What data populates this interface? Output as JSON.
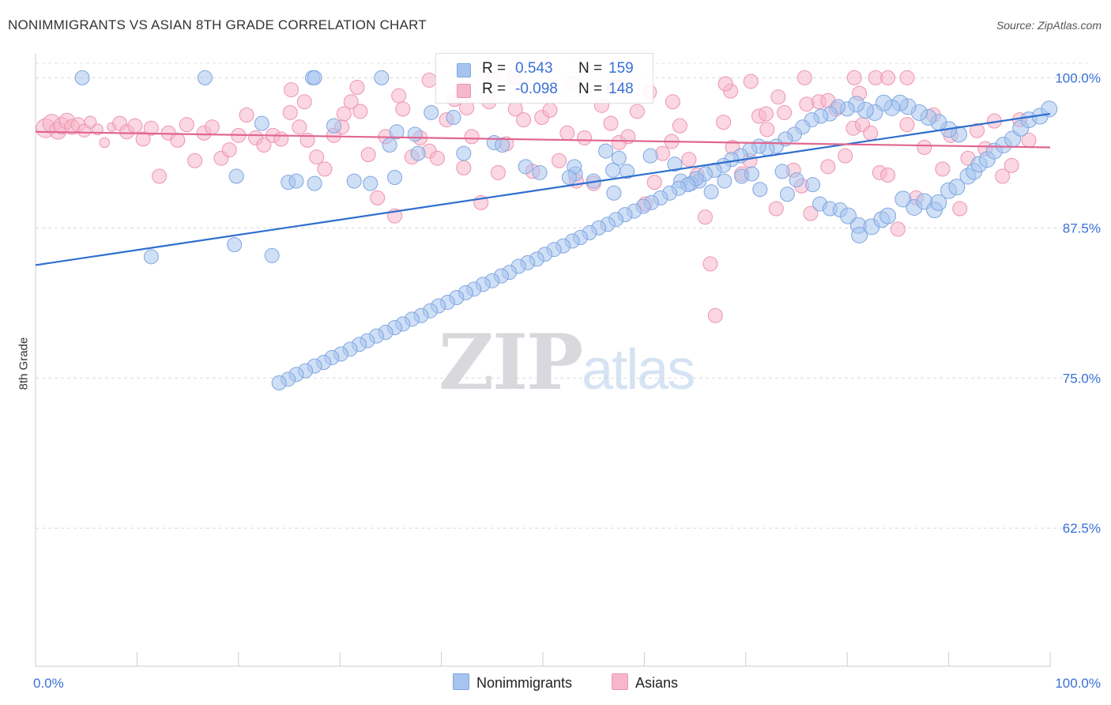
{
  "title": "NONIMMIGRANTS VS ASIAN 8TH GRADE CORRELATION CHART",
  "source": "Source: ZipAtlas.com",
  "watermark": {
    "zip": "ZIP",
    "atlas": "atlas"
  },
  "stats": [
    {
      "r_label": "R =",
      "r_value": "0.543",
      "n_label": "N =",
      "n_value": "159"
    },
    {
      "r_label": "R =",
      "r_value": "-0.098",
      "n_label": "N =",
      "n_value": "148"
    }
  ],
  "legend": {
    "blue": "Nonimmigrants",
    "pink": "Asians"
  },
  "colors": {
    "blue_fill": "#a7c4ee",
    "blue_line": "#2d6fcf",
    "pink_fill": "#f6b7ca",
    "pink_line": "#e06690",
    "tick_text": "#3a6fd8"
  },
  "chart_data": {
    "type": "scatter",
    "title": "NONIMMIGRANTS VS ASIAN 8TH GRADE CORRELATION CHART",
    "xlabel": "",
    "ylabel": "8th Grade",
    "xlim": [
      0,
      100
    ],
    "ylim": [
      51,
      102
    ],
    "x_tick_labels": [
      "0.0%",
      "100.0%"
    ],
    "y_ticks": [
      62.5,
      75.0,
      87.5,
      100.0
    ],
    "y_tick_labels": [
      "62.5%",
      "75.0%",
      "87.5%",
      "100.0%"
    ],
    "grid": true,
    "legend_position": "bottom-center",
    "series": [
      {
        "name": "Nonimmigrants",
        "r": 0.543,
        "n": 159,
        "trend": {
          "x": [
            0,
            100
          ],
          "y": [
            84.4,
            97.0
          ]
        },
        "points": [
          [
            4.6,
            100
          ],
          [
            16.7,
            100
          ],
          [
            27.3,
            100
          ],
          [
            27.5,
            100
          ],
          [
            34.1,
            100
          ],
          [
            29.4,
            96.0
          ],
          [
            22.3,
            96.2
          ],
          [
            11.4,
            85.1
          ],
          [
            19.6,
            86.1
          ],
          [
            23.3,
            85.2
          ],
          [
            24.9,
            91.3
          ],
          [
            25.7,
            91.4
          ],
          [
            27.5,
            91.2
          ],
          [
            19.8,
            91.8
          ],
          [
            31.4,
            91.4
          ],
          [
            33.0,
            91.2
          ],
          [
            35.4,
            91.7
          ],
          [
            37.7,
            93.7
          ],
          [
            37.4,
            95.3
          ],
          [
            41.2,
            96.7
          ],
          [
            35.6,
            95.5
          ],
          [
            34.9,
            94.4
          ],
          [
            39.0,
            97.1
          ],
          [
            42.2,
            93.7
          ],
          [
            45.2,
            94.6
          ],
          [
            46.0,
            94.4
          ],
          [
            48.3,
            92.6
          ],
          [
            49.7,
            92.1
          ],
          [
            53.2,
            92.0
          ],
          [
            55.0,
            91.4
          ],
          [
            56.2,
            93.9
          ],
          [
            63.6,
            91.4
          ],
          [
            65.4,
            91.4
          ],
          [
            57.5,
            93.3
          ],
          [
            57.0,
            90.4
          ],
          [
            56.9,
            92.3
          ],
          [
            53.1,
            92.6
          ],
          [
            52.6,
            91.7
          ],
          [
            58.3,
            92.2
          ],
          [
            60.6,
            93.5
          ],
          [
            63.0,
            92.8
          ],
          [
            64.6,
            91.2
          ],
          [
            66.6,
            90.5
          ],
          [
            69.6,
            91.8
          ],
          [
            67.9,
            91.4
          ],
          [
            70.6,
            92.0
          ],
          [
            71.4,
            90.7
          ],
          [
            73.6,
            92.2
          ],
          [
            75.0,
            91.5
          ],
          [
            74.1,
            90.3
          ],
          [
            76.6,
            91.1
          ],
          [
            77.3,
            89.5
          ],
          [
            78.3,
            89.1
          ],
          [
            79.3,
            89.0
          ],
          [
            80.1,
            88.5
          ],
          [
            81.1,
            87.7
          ],
          [
            81.2,
            86.9
          ],
          [
            82.4,
            87.6
          ],
          [
            83.4,
            88.2
          ],
          [
            84.0,
            88.5
          ],
          [
            85.5,
            89.9
          ],
          [
            86.6,
            89.2
          ],
          [
            87.6,
            89.7
          ],
          [
            88.6,
            89.0
          ],
          [
            89.0,
            89.6
          ],
          [
            90.0,
            90.6
          ],
          [
            90.8,
            90.9
          ],
          [
            91.9,
            91.8
          ],
          [
            92.5,
            92.2
          ],
          [
            93.0,
            92.8
          ],
          [
            93.8,
            93.2
          ],
          [
            94.5,
            93.9
          ],
          [
            95.4,
            94.4
          ],
          [
            96.3,
            94.9
          ],
          [
            97.1,
            95.8
          ],
          [
            97.9,
            96.5
          ],
          [
            99.0,
            96.8
          ],
          [
            99.9,
            97.4
          ],
          [
            91.0,
            95.3
          ],
          [
            90.0,
            95.7
          ],
          [
            89.0,
            96.3
          ],
          [
            88.0,
            96.7
          ],
          [
            87.1,
            97.1
          ],
          [
            86.0,
            97.6
          ],
          [
            85.2,
            97.9
          ],
          [
            84.4,
            97.5
          ],
          [
            83.6,
            97.9
          ],
          [
            82.7,
            97.1
          ],
          [
            81.8,
            97.3
          ],
          [
            80.9,
            97.8
          ],
          [
            80.0,
            97.4
          ],
          [
            79.1,
            97.6
          ],
          [
            78.3,
            97.0
          ],
          [
            77.4,
            96.8
          ],
          [
            76.5,
            96.5
          ],
          [
            75.6,
            95.9
          ],
          [
            74.8,
            95.3
          ],
          [
            73.9,
            94.9
          ],
          [
            73.0,
            94.3
          ],
          [
            72.1,
            94.1
          ],
          [
            71.3,
            94.3
          ],
          [
            70.4,
            94.0
          ],
          [
            69.5,
            93.5
          ],
          [
            68.6,
            93.2
          ],
          [
            67.8,
            92.7
          ],
          [
            66.9,
            92.3
          ],
          [
            66.0,
            92.0
          ],
          [
            65.1,
            91.6
          ],
          [
            64.3,
            91.1
          ],
          [
            63.4,
            90.8
          ],
          [
            62.5,
            90.4
          ],
          [
            61.6,
            90.0
          ],
          [
            60.7,
            89.6
          ],
          [
            59.9,
            89.3
          ],
          [
            59.0,
            88.9
          ],
          [
            58.1,
            88.6
          ],
          [
            57.2,
            88.2
          ],
          [
            56.4,
            87.8
          ],
          [
            55.5,
            87.5
          ],
          [
            54.6,
            87.1
          ],
          [
            53.7,
            86.7
          ],
          [
            52.9,
            86.4
          ],
          [
            52.0,
            86.0
          ],
          [
            51.1,
            85.7
          ],
          [
            50.2,
            85.3
          ],
          [
            49.4,
            84.9
          ],
          [
            48.5,
            84.6
          ],
          [
            47.6,
            84.3
          ],
          [
            46.7,
            83.8
          ],
          [
            45.9,
            83.5
          ],
          [
            45.0,
            83.1
          ],
          [
            44.1,
            82.8
          ],
          [
            43.2,
            82.4
          ],
          [
            42.4,
            82.1
          ],
          [
            41.5,
            81.7
          ],
          [
            40.6,
            81.3
          ],
          [
            39.7,
            81.0
          ],
          [
            38.9,
            80.6
          ],
          [
            38.0,
            80.2
          ],
          [
            37.1,
            79.9
          ],
          [
            36.2,
            79.5
          ],
          [
            35.4,
            79.2
          ],
          [
            34.5,
            78.8
          ],
          [
            33.6,
            78.5
          ],
          [
            32.7,
            78.1
          ],
          [
            31.9,
            77.8
          ],
          [
            31.0,
            77.4
          ],
          [
            30.1,
            77.0
          ],
          [
            29.2,
            76.7
          ],
          [
            28.4,
            76.3
          ],
          [
            27.5,
            76.0
          ],
          [
            26.6,
            75.6
          ],
          [
            25.7,
            75.3
          ],
          [
            24.9,
            74.9
          ],
          [
            24.0,
            74.6
          ]
        ]
      },
      {
        "name": "Asians",
        "r": -0.098,
        "n": 148,
        "trend": {
          "x": [
            0,
            100
          ],
          "y": [
            95.5,
            94.2
          ]
        },
        "points": [
          [
            1.0,
            95.8
          ],
          [
            1.6,
            96.2
          ],
          [
            2.2,
            95.6
          ],
          [
            2.6,
            96.0
          ],
          [
            3.1,
            96.4
          ],
          [
            3.6,
            95.9
          ],
          [
            4.2,
            96.1
          ],
          [
            4.8,
            95.6
          ],
          [
            5.4,
            96.3
          ],
          [
            6.1,
            95.7
          ],
          [
            6.8,
            94.6
          ],
          [
            7.5,
            95.9
          ],
          [
            8.3,
            96.2
          ],
          [
            9.0,
            95.5
          ],
          [
            9.8,
            96.0
          ],
          [
            10.6,
            94.9
          ],
          [
            11.4,
            95.8
          ],
          [
            12.2,
            91.8
          ],
          [
            13.1,
            95.4
          ],
          [
            14.0,
            94.8
          ],
          [
            14.9,
            96.1
          ],
          [
            15.7,
            93.1
          ],
          [
            16.6,
            95.4
          ],
          [
            17.4,
            95.9
          ],
          [
            18.3,
            93.3
          ],
          [
            19.1,
            94.0
          ],
          [
            20.0,
            95.2
          ],
          [
            20.8,
            96.9
          ],
          [
            21.7,
            95.0
          ],
          [
            22.5,
            94.4
          ],
          [
            23.4,
            95.2
          ],
          [
            24.2,
            94.9
          ],
          [
            25.1,
            97.1
          ],
          [
            26.0,
            95.9
          ],
          [
            26.8,
            94.8
          ],
          [
            27.7,
            93.4
          ],
          [
            28.5,
            92.4
          ],
          [
            29.4,
            95.2
          ],
          [
            30.2,
            95.9
          ],
          [
            31.1,
            98.0
          ],
          [
            32.0,
            97.2
          ],
          [
            32.8,
            93.6
          ],
          [
            33.7,
            90.0
          ],
          [
            34.5,
            95.1
          ],
          [
            35.4,
            88.5
          ],
          [
            36.2,
            97.4
          ],
          [
            37.1,
            93.4
          ],
          [
            37.9,
            95.0
          ],
          [
            38.8,
            93.9
          ],
          [
            39.6,
            93.3
          ],
          [
            40.5,
            96.5
          ],
          [
            41.3,
            98.2
          ],
          [
            42.2,
            92.5
          ],
          [
            43.0,
            95.1
          ],
          [
            43.9,
            89.6
          ],
          [
            44.7,
            98.0
          ],
          [
            45.6,
            92.1
          ],
          [
            46.4,
            94.5
          ],
          [
            47.3,
            97.4
          ],
          [
            48.1,
            96.5
          ],
          [
            49.0,
            92.2
          ],
          [
            49.9,
            96.7
          ],
          [
            50.7,
            97.3
          ],
          [
            51.6,
            93.1
          ],
          [
            52.4,
            95.4
          ],
          [
            53.3,
            91.4
          ],
          [
            54.1,
            95.0
          ],
          [
            55.0,
            91.2
          ],
          [
            55.8,
            97.7
          ],
          [
            56.7,
            96.2
          ],
          [
            57.5,
            94.6
          ],
          [
            58.4,
            95.1
          ],
          [
            59.3,
            97.2
          ],
          [
            60.1,
            89.5
          ],
          [
            61.0,
            91.3
          ],
          [
            61.8,
            93.7
          ],
          [
            62.7,
            94.7
          ],
          [
            63.5,
            96.0
          ],
          [
            64.4,
            93.2
          ],
          [
            65.2,
            91.9
          ],
          [
            66.0,
            88.4
          ],
          [
            67.0,
            80.2
          ],
          [
            67.8,
            96.3
          ],
          [
            68.7,
            94.2
          ],
          [
            69.6,
            92.0
          ],
          [
            70.4,
            93.1
          ],
          [
            71.3,
            96.8
          ],
          [
            72.1,
            95.7
          ],
          [
            73.0,
            89.1
          ],
          [
            73.8,
            97.1
          ],
          [
            74.7,
            92.3
          ],
          [
            75.5,
            91.0
          ],
          [
            76.4,
            88.7
          ],
          [
            77.2,
            98.0
          ],
          [
            78.1,
            92.6
          ],
          [
            78.9,
            97.4
          ],
          [
            79.8,
            93.5
          ],
          [
            80.6,
            95.8
          ],
          [
            81.5,
            96.1
          ],
          [
            82.3,
            95.4
          ],
          [
            83.2,
            92.1
          ],
          [
            84.0,
            91.9
          ],
          [
            85.0,
            87.4
          ],
          [
            85.9,
            96.1
          ],
          [
            86.8,
            90.0
          ],
          [
            87.6,
            94.2
          ],
          [
            88.5,
            96.9
          ],
          [
            89.4,
            92.4
          ],
          [
            90.2,
            95.2
          ],
          [
            91.1,
            89.1
          ],
          [
            91.9,
            93.3
          ],
          [
            92.8,
            95.6
          ],
          [
            93.6,
            94.1
          ],
          [
            94.5,
            96.4
          ],
          [
            95.3,
            91.8
          ],
          [
            96.2,
            92.7
          ],
          [
            97.0,
            96.5
          ],
          [
            97.9,
            94.8
          ],
          [
            66.5,
            84.5
          ],
          [
            68.5,
            98.9
          ],
          [
            70.5,
            99.7
          ],
          [
            72.0,
            97.0
          ],
          [
            75.8,
            100
          ],
          [
            80.7,
            100
          ],
          [
            82.8,
            100
          ],
          [
            84.0,
            100
          ],
          [
            85.9,
            100
          ],
          [
            78.1,
            98.1
          ],
          [
            60.5,
            98.8
          ],
          [
            50.3,
            99.0
          ],
          [
            35.8,
            98.5
          ],
          [
            30.4,
            97.0
          ],
          [
            26.5,
            98.0
          ],
          [
            42.5,
            97.5
          ],
          [
            47.2,
            100
          ],
          [
            56.9,
            99.2
          ],
          [
            62.8,
            98.0
          ],
          [
            76.0,
            97.8
          ],
          [
            81.2,
            98.7
          ],
          [
            68.0,
            99.5
          ],
          [
            73.2,
            98.4
          ],
          [
            45.0,
            100
          ],
          [
            52.9,
            99.5
          ],
          [
            38.8,
            99.8
          ],
          [
            31.7,
            99.2
          ],
          [
            25.2,
            99.0
          ]
        ]
      }
    ]
  }
}
